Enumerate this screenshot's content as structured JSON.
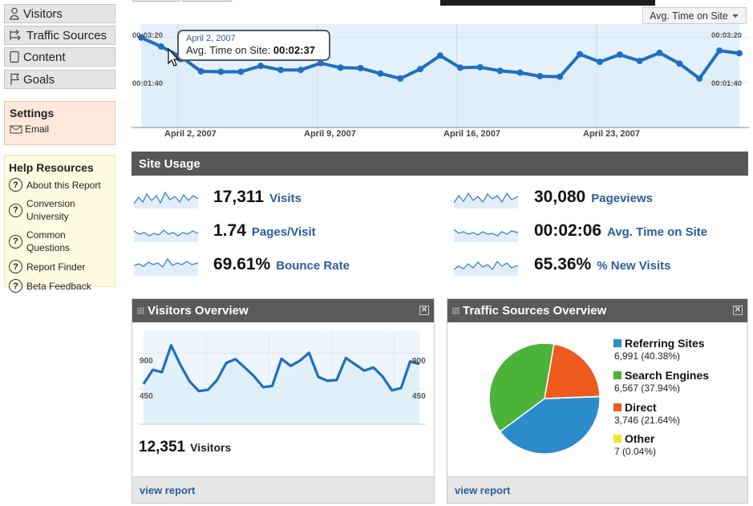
{
  "sidebar": {
    "nav": [
      {
        "label": "Visitors",
        "icon": "person-icon"
      },
      {
        "label": "Traffic Sources",
        "icon": "traffic-arrows-icon"
      },
      {
        "label": "Content",
        "icon": "page-icon"
      },
      {
        "label": "Goals",
        "icon": "flag-icon"
      }
    ],
    "settings": {
      "title": "Settings",
      "email_label": "Email"
    },
    "help": {
      "title": "Help Resources",
      "items": [
        "About this Report",
        "Conversion University",
        "Common Questions",
        "Report Finder",
        "Beta Feedback"
      ]
    }
  },
  "main_chart": {
    "metric_selector": "Avg. Time on Site",
    "y_top_left": "00:03:20",
    "y_top_right": "00:03:20",
    "y_mid_left": "00:01:40",
    "y_mid_right": "00:01:40",
    "tooltip": {
      "date": "April 2, 2007",
      "metric": "Avg. Time on Site:",
      "value": "00:02:37"
    },
    "x_labels": [
      "April 2, 2007",
      "April 9, 2007",
      "April 16, 2007",
      "April 23, 2007"
    ],
    "colors": {
      "line": "#1f6fc1",
      "fill": "#e4f1fb"
    }
  },
  "chart_data": [
    {
      "type": "area",
      "name": "avg-time-on-site",
      "x": [
        "Mar 31",
        "Apr 1",
        "Apr 2",
        "Apr 3",
        "Apr 4",
        "Apr 5",
        "Apr 6",
        "Apr 7",
        "Apr 8",
        "Apr 9",
        "Apr 10",
        "Apr 11",
        "Apr 12",
        "Apr 13",
        "Apr 14",
        "Apr 15",
        "Apr 16",
        "Apr 17",
        "Apr 18",
        "Apr 19",
        "Apr 20",
        "Apr 21",
        "Apr 22",
        "Apr 23",
        "Apr 24",
        "Apr 25",
        "Apr 26",
        "Apr 27",
        "Apr 28",
        "Apr 29",
        "Apr 30"
      ],
      "values_seconds": [
        200,
        180,
        157,
        125,
        124,
        124,
        137,
        128,
        128,
        143,
        133,
        132,
        120,
        109,
        130,
        160,
        133,
        134,
        126,
        122,
        114,
        113,
        163,
        146,
        162,
        148,
        166,
        142,
        109,
        171,
        165
      ],
      "ylim_seconds": [
        0,
        230
      ],
      "yticks": [
        "00:01:40",
        "00:03:20"
      ]
    },
    {
      "type": "area",
      "name": "visitors-overview",
      "values": [
        510,
        690,
        660,
        1000,
        755,
        545,
        420,
        435,
        560,
        778,
        825,
        720,
        610,
        470,
        485,
        830,
        740,
        805,
        905,
        600,
        550,
        560,
        840,
        760,
        680,
        720,
        605,
        430,
        458,
        795,
        765
      ],
      "ylim": [
        0,
        1180
      ],
      "yticks": [
        450,
        900
      ]
    },
    {
      "type": "pie",
      "name": "traffic-sources",
      "labels": [
        "Referring Sites",
        "Search Engines",
        "Direct",
        "Other"
      ],
      "values": [
        6991,
        6567,
        3746,
        7
      ],
      "percents": [
        "40.38%",
        "37.94%",
        "21.64%",
        "0.04%"
      ],
      "colors": [
        "#2a8ccb",
        "#4cb23a",
        "#ef5a1e",
        "#ede82a"
      ]
    }
  ],
  "site_usage": {
    "title": "Site Usage",
    "stats": [
      {
        "value": "17,311",
        "label": "Visits"
      },
      {
        "value": "30,080",
        "label": "Pageviews"
      },
      {
        "value": "1.74",
        "label": "Pages/Visit"
      },
      {
        "value": "00:02:06",
        "label": "Avg. Time on Site"
      },
      {
        "value": "69.61%",
        "label": "Bounce Rate"
      },
      {
        "value": "65.36%",
        "label": "% New Visits"
      }
    ]
  },
  "visitors_overview": {
    "title": "Visitors Overview",
    "y_left_top": "900",
    "y_left_mid": "450",
    "y_right_top": "900",
    "y_right_mid": "450",
    "total_value": "12,351",
    "total_label": "Visitors",
    "link": "view report"
  },
  "traffic_sources": {
    "title": "Traffic Sources Overview",
    "legend": [
      {
        "name": "Referring Sites",
        "value": "6,991 (40.38%)"
      },
      {
        "name": "Search Engines",
        "value": "6,567 (37.94%)"
      },
      {
        "name": "Direct",
        "value": "3,746 (21.64%)"
      },
      {
        "name": "Other",
        "value": "7 (0.04%)"
      }
    ],
    "link": "view report"
  }
}
